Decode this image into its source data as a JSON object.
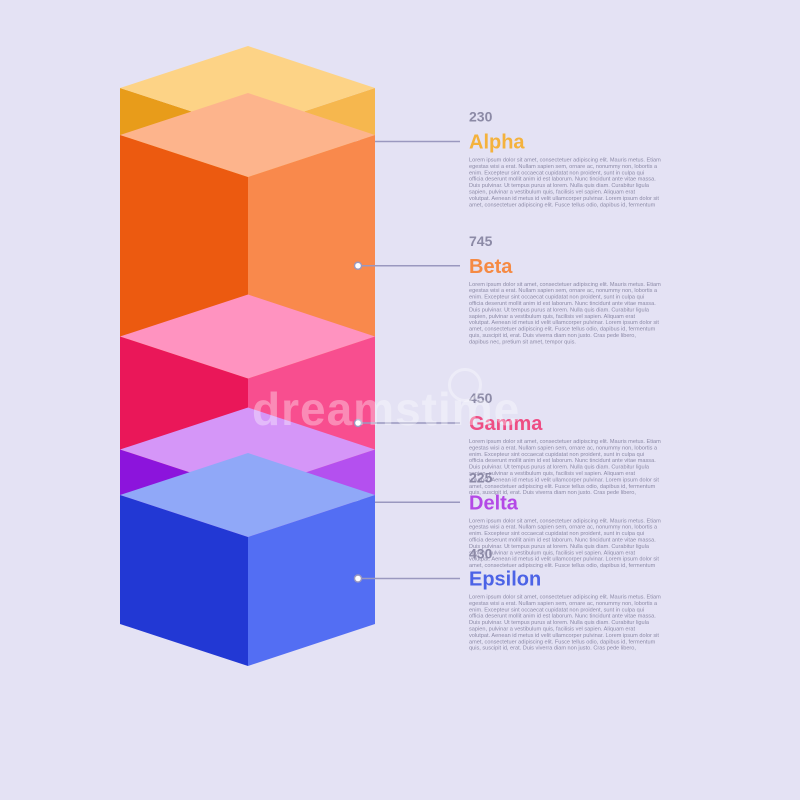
{
  "chart_data": {
    "type": "bar",
    "categories": [
      "Alpha",
      "Beta",
      "Gamma",
      "Delta",
      "Epsilon"
    ],
    "values": [
      230,
      745,
      450,
      225,
      430
    ],
    "colors": {
      "Alpha": {
        "top": "#fdd386",
        "left": "#e89c1a",
        "right": "#f6b74e",
        "text": "#f4b23d"
      },
      "Beta": {
        "top": "#fdb48c",
        "left": "#ec5a10",
        "right": "#f9894c",
        "text": "#f58a44"
      },
      "Gamma": {
        "top": "#ff93c0",
        "left": "#ea1759",
        "right": "#f84e8f",
        "text": "#ee4d84"
      },
      "Delta": {
        "top": "#d596f8",
        "left": "#8c14dc",
        "right": "#b450ef",
        "text": "#b449e6"
      },
      "Epsilon": {
        "top": "#90a8f8",
        "left": "#2238d4",
        "right": "#536ef3",
        "text": "#4c63e6"
      }
    },
    "description": "Lorem ipsum dolor sit amet, consectetuer adipiscing elit. Mauris metus. Etiam egestas wisi a erat. Nullam sapien sem, ornare ac, nonummy non, lobortis a enim. Excepteur sint occaecat cupidatat non proident, sunt in culpa qui officia deserunt mollit anim id est laborum. Nunc tincidunt ante vitae massa. Duis pulvinar. Ut tempus purus at lorem. Nulla quis diam. Curabitur ligula sapien, pulvinar a vestibulum quis, facilisis vel sapien. Aliquam erat volutpat. Aenean id metus id velit ullamcorper pulvinar. Lorem ipsum dolor sit amet, consectetuer adipiscing elit. Fusce tellus odio, dapibus id, fermentum quis, suscipit id, erat. Duis viverra diam non justo. Cras pede libero, dapibus nec, pretium sit amet, tempor quis."
  }
}
